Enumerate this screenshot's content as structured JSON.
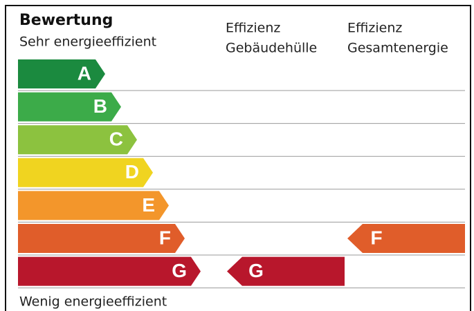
{
  "header": {
    "title": "Bewertung",
    "subtitle": "Sehr energieeffizient"
  },
  "columns": [
    [
      "Effizienz",
      "Gebäudehülle"
    ],
    [
      "Effizienz",
      "Gesamtenergie"
    ]
  ],
  "classes": [
    {
      "label": "A",
      "color": "#1b8a3f"
    },
    {
      "label": "B",
      "color": "#3cab49"
    },
    {
      "label": "C",
      "color": "#8cc23f"
    },
    {
      "label": "D",
      "color": "#f0d420"
    },
    {
      "label": "E",
      "color": "#f3962b"
    },
    {
      "label": "F",
      "color": "#e05d2a"
    },
    {
      "label": "G",
      "color": "#b8172c"
    }
  ],
  "ratings": [
    {
      "label": "G"
    },
    {
      "label": "F"
    }
  ],
  "footer": "Wenig energieeffizient"
}
